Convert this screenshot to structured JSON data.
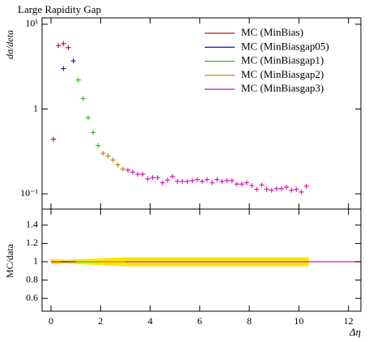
{
  "chart_data": [
    {
      "type": "errorpoints",
      "title": "Large Rapidity Gap",
      "ylabel": "dσ/deta",
      "xlim": [
        -0.36,
        12.5
      ],
      "xticks": [
        0,
        2,
        4,
        6,
        8,
        10,
        12
      ],
      "ylim": [
        0.066,
        11.9
      ],
      "log_y": true,
      "yticks": [
        {
          "value": 10,
          "label": "10¹"
        },
        1,
        {
          "value": 0.1,
          "label": "10⁻¹"
        }
      ],
      "legend": "top-right",
      "series": [
        {
          "name": "MC (MinBias)",
          "color": "#c8102e",
          "x": [
            0.1,
            0.3,
            0.5,
            0.7
          ],
          "values": [
            0.44,
            5.6,
            5.9,
            5.3
          ]
        },
        {
          "name": "MC (MinBiasgap05)",
          "color": "#2020c8",
          "x": [
            0.5,
            0.9
          ],
          "values": [
            3.0,
            3.7
          ]
        },
        {
          "name": "MC (MinBiasgap1)",
          "color": "#30c020",
          "x": [
            1.1,
            1.3,
            1.5,
            1.7,
            1.9
          ],
          "values": [
            2.2,
            1.33,
            0.79,
            0.53,
            0.37
          ]
        },
        {
          "name": "MC (MinBiasgap2)",
          "color": "#c88010",
          "x": [
            2.1,
            2.3,
            2.5,
            2.7,
            2.9
          ],
          "values": [
            0.3,
            0.28,
            0.25,
            0.22,
            0.196
          ]
        },
        {
          "name": "MC (MinBiasgap3)",
          "color": "#d020b0",
          "x": [
            3.1,
            3.3,
            3.5,
            3.7,
            3.9,
            4.1,
            4.3,
            4.5,
            4.7,
            4.9,
            5.1,
            5.3,
            5.5,
            5.7,
            5.9,
            6.1,
            6.3,
            6.5,
            6.7,
            6.9,
            7.1,
            7.3,
            7.5,
            7.7,
            7.9,
            8.1,
            8.3,
            8.5,
            8.7,
            8.9,
            9.1,
            9.3,
            9.5,
            9.7,
            9.9,
            10.1,
            10.3
          ],
          "values": [
            0.19,
            0.18,
            0.17,
            0.17,
            0.15,
            0.155,
            0.155,
            0.135,
            0.145,
            0.16,
            0.14,
            0.14,
            0.14,
            0.143,
            0.147,
            0.14,
            0.147,
            0.135,
            0.147,
            0.14,
            0.143,
            0.143,
            0.13,
            0.13,
            0.135,
            0.125,
            0.113,
            0.127,
            0.113,
            0.11,
            0.115,
            0.115,
            0.12,
            0.11,
            0.113,
            0.105,
            0.123
          ]
        }
      ]
    },
    {
      "type": "ratio",
      "ylabel": "MC/data",
      "xlabel": "Δη",
      "xlim": [
        -0.36,
        12.5
      ],
      "xticks": [
        0,
        2,
        4,
        6,
        8,
        10,
        12
      ],
      "ylim": [
        0.46,
        1.575
      ],
      "yticks": [
        0.6,
        0.8,
        1,
        1.2,
        1.4
      ],
      "band": {
        "color": "#ffe400",
        "x": [
          0,
          0.6,
          1.4,
          2.2,
          3,
          10.4
        ],
        "lower": [
          0.97,
          0.98,
          0.97,
          0.96,
          0.95,
          0.95
        ],
        "upper": [
          1.03,
          1.02,
          1.03,
          1.04,
          1.05,
          1.05
        ]
      },
      "series": [
        {
          "color": "#c8102e",
          "x": [
            0,
            0.8
          ],
          "values": [
            1,
            1
          ]
        },
        {
          "color": "#2020c8",
          "x": [
            0.4,
            1.0
          ],
          "values": [
            1,
            1
          ]
        },
        {
          "color": "#30c020",
          "x": [
            1.0,
            2.0
          ],
          "values": [
            1,
            1
          ]
        },
        {
          "color": "#c88010",
          "x": [
            2.0,
            3.0
          ],
          "values": [
            1,
            1
          ]
        },
        {
          "color": "#d020b0",
          "x": [
            3.0,
            12.5
          ],
          "values": [
            1,
            1
          ]
        }
      ]
    }
  ]
}
